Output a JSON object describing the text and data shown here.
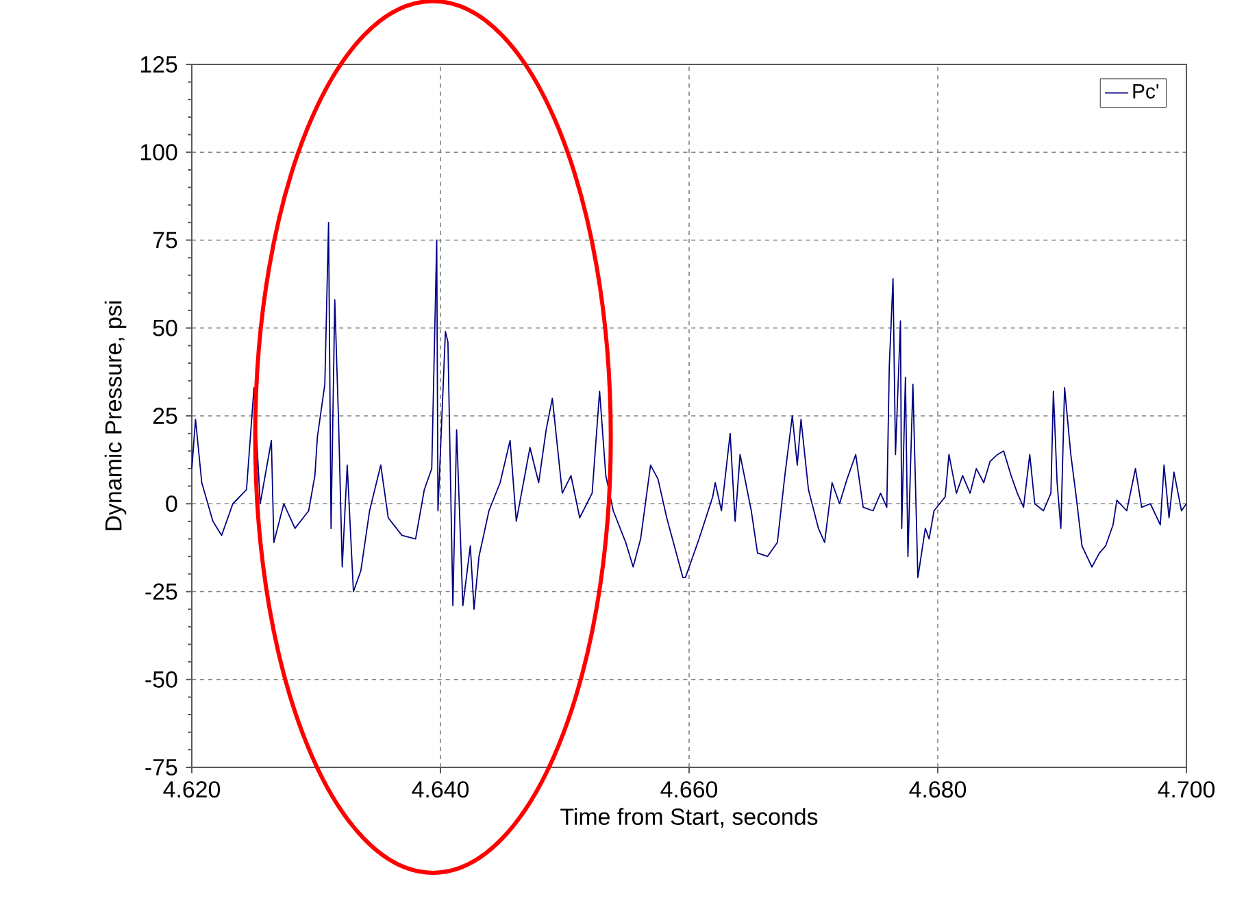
{
  "chart_data": {
    "type": "line",
    "xlabel": "Time from Start, seconds",
    "ylabel": "Dynamic Pressure, psi",
    "xlim": [
      4.62,
      4.7
    ],
    "ylim": [
      -75,
      125
    ],
    "xticks": [
      {
        "value": 4.62,
        "label": "4.620"
      },
      {
        "value": 4.64,
        "label": "4.640"
      },
      {
        "value": 4.66,
        "label": "4.660"
      },
      {
        "value": 4.68,
        "label": "4.680"
      },
      {
        "value": 4.7,
        "label": "4.700"
      }
    ],
    "yticks": [
      -75,
      -50,
      -25,
      0,
      25,
      50,
      75,
      100,
      125
    ],
    "grid": true,
    "legend": "top right",
    "line_style": "solid",
    "marker": "none",
    "series": [
      {
        "name": "Pc'",
        "color": "#000080",
        "x": [
          4.62,
          4.6203,
          4.6208,
          4.6217,
          4.6224,
          4.6233,
          4.6244,
          4.625,
          4.6255,
          4.6264,
          4.6266,
          4.6274,
          4.6283,
          4.6294,
          4.6299,
          4.6301,
          4.6307,
          4.631,
          4.6312,
          4.6315,
          4.6318,
          4.6321,
          4.6325,
          4.633,
          4.6336,
          4.6343,
          4.6352,
          4.6358,
          4.6369,
          4.638,
          4.6387,
          4.6393,
          4.6397,
          4.6398,
          4.6404,
          4.6406,
          4.641,
          4.6413,
          4.6418,
          4.6424,
          4.6427,
          4.6431,
          4.6439,
          4.6448,
          4.6456,
          4.6461,
          4.6472,
          4.6479,
          4.6485,
          4.649,
          4.6498,
          4.6505,
          4.6512,
          4.6522,
          4.6528,
          4.6533,
          4.6539,
          4.6549,
          4.6555,
          4.6561,
          4.6569,
          4.6575,
          4.6582,
          4.6595,
          4.6597,
          4.6608,
          4.6619,
          4.6621,
          4.6626,
          4.6633,
          4.6637,
          4.6641,
          4.665,
          4.6655,
          4.6663,
          4.6671,
          4.6677,
          4.6683,
          4.6687,
          4.669,
          4.6696,
          4.6704,
          4.6709,
          4.6715,
          4.6721,
          4.6727,
          4.6734,
          4.674,
          4.6748,
          4.6754,
          4.6759,
          4.6761,
          4.6764,
          4.6766,
          4.677,
          4.6771,
          4.6774,
          4.6776,
          4.678,
          4.6784,
          4.679,
          4.6793,
          4.6797,
          4.6806,
          4.6809,
          4.6815,
          4.682,
          4.6826,
          4.6831,
          4.6837,
          4.6842,
          4.6848,
          4.6853,
          4.6859,
          4.6864,
          4.6869,
          4.6874,
          4.6878,
          4.6885,
          4.6891,
          4.6893,
          4.6896,
          4.6899,
          4.6902,
          4.6907,
          4.6911,
          4.6916,
          4.6924,
          4.693,
          4.6935,
          4.6941,
          4.6944,
          4.6952,
          4.6959,
          4.6964,
          4.6971,
          4.6979,
          4.6982,
          4.6986,
          4.699,
          4.6996,
          4.7
        ],
        "values": [
          10,
          24,
          6,
          -5,
          -9,
          0,
          4,
          33,
          0,
          18,
          -11,
          0,
          -7,
          -2,
          8,
          19,
          34,
          80,
          -7,
          58,
          24,
          -18,
          11,
          -25,
          -19,
          -2,
          11,
          -4,
          -9,
          -10,
          4,
          10,
          75,
          -2,
          49,
          46,
          -29,
          21,
          -29,
          -12,
          -30,
          -15,
          -2,
          6,
          18,
          -5,
          16,
          6,
          21,
          30,
          3,
          8,
          -4,
          3,
          32,
          8,
          -2,
          -11,
          -18,
          -10,
          11,
          7,
          -4,
          -21,
          -21,
          -10,
          2,
          6,
          -2,
          20,
          -5,
          14,
          -2,
          -14,
          -15,
          -11,
          8,
          25,
          11,
          24,
          4,
          -7,
          -11,
          6,
          0,
          7,
          14,
          -1,
          -2,
          3,
          -1,
          39,
          64,
          14,
          52,
          -7,
          36,
          -15,
          34,
          -21,
          -7,
          -10,
          -2,
          2,
          14,
          3,
          8,
          3,
          10,
          6,
          12,
          14,
          15,
          8,
          3,
          -1,
          14,
          0,
          -2,
          3,
          32,
          6,
          -7,
          33,
          14,
          3,
          -12,
          -18,
          -14,
          -12,
          -6,
          1,
          -2,
          10,
          -1,
          0,
          -6,
          11,
          -4,
          9,
          -2,
          0
        ]
      }
    ]
  }
}
